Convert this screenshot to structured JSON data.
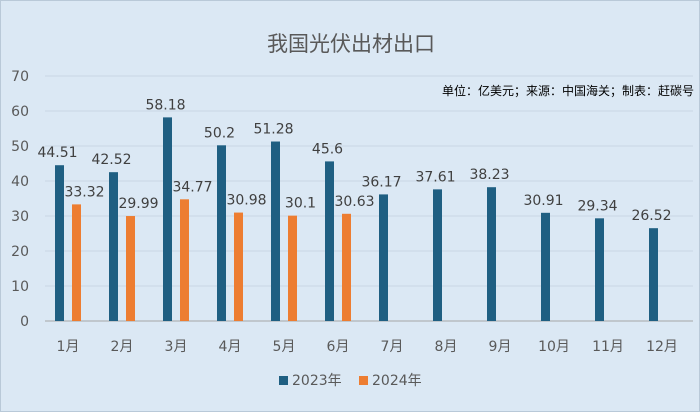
{
  "chart_data": {
    "type": "bar",
    "title": "我国光伏出材出口",
    "note": "单位：亿美元；来源：中国海关；制表：赶碳号",
    "categories": [
      "1月",
      "2月",
      "3月",
      "4月",
      "5月",
      "6月",
      "7月",
      "8月",
      "9月",
      "10月",
      "11月",
      "12月"
    ],
    "series": [
      {
        "name": "2023年",
        "color": "#1f5f82",
        "values": [
          44.51,
          42.52,
          58.18,
          50.2,
          51.28,
          45.6,
          36.17,
          37.61,
          38.23,
          30.91,
          29.34,
          26.52
        ],
        "labels": [
          "44.51",
          "42.52",
          "58.18",
          "50.2",
          "51.28",
          "45.6",
          "36.17",
          "37.61",
          "38.23",
          "30.91",
          "29.34",
          "26.52"
        ]
      },
      {
        "name": "2024年",
        "color": "#ed7d31",
        "values": [
          33.32,
          29.99,
          34.77,
          30.98,
          30.1,
          30.63,
          null,
          null,
          null,
          null,
          null,
          null
        ],
        "labels": [
          "33.32",
          "29.99",
          "34.77",
          "30.98",
          "30.1",
          "30.63",
          "",
          "",
          "",
          "",
          "",
          ""
        ]
      }
    ],
    "ylim": [
      0,
      70
    ],
    "yticks": [
      "0",
      "10",
      "20",
      "30",
      "40",
      "50",
      "60",
      "70"
    ],
    "grid": true,
    "legend": "bottom"
  }
}
